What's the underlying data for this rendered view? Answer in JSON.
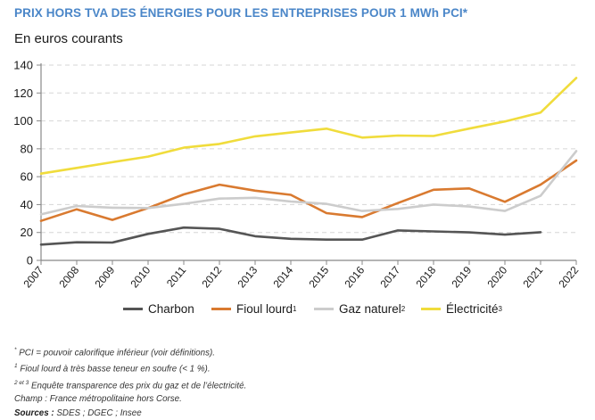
{
  "header": {
    "title": "PRIX HORS TVA DES ÉNERGIES POUR LES ENTREPRISES POUR 1 MWh PCI*",
    "subtitle": "En euros courants"
  },
  "chart_data": {
    "type": "line",
    "title": "PRIX HORS TVA DES ÉNERGIES POUR LES ENTREPRISES POUR 1 MWh PCI*",
    "subtitle": "En euros courants",
    "xlabel": "",
    "ylabel": "En euros courants",
    "x": [
      "2007",
      "2008",
      "2009",
      "2010",
      "2011",
      "2012",
      "2013",
      "2014",
      "2015",
      "2016",
      "2017",
      "2018",
      "2019",
      "2020",
      "2021",
      "2022"
    ],
    "ylim": [
      0,
      140
    ],
    "yticks": [
      0,
      20,
      40,
      60,
      80,
      100,
      120,
      140
    ],
    "grid": true,
    "legend_position": "bottom",
    "series": [
      {
        "name": "Charbon",
        "sup": "",
        "color": "#555555",
        "values": [
          11.3,
          13.0,
          12.8,
          19.0,
          23.5,
          22.6,
          17.3,
          15.5,
          14.9,
          14.9,
          21.5,
          20.8,
          20.1,
          18.5,
          20.2,
          null
        ]
      },
      {
        "name": "Fioul lourd",
        "sup": "1",
        "color": "#d97a30",
        "values": [
          28.3,
          36.6,
          29.0,
          37.5,
          47.3,
          54.3,
          50.0,
          47.0,
          33.9,
          31.1,
          41.1,
          50.6,
          51.6,
          42.0,
          54.3,
          71.6
        ]
      },
      {
        "name": "Gaz naturel",
        "sup": "2",
        "color": "#cccccc",
        "values": [
          33.0,
          39.0,
          37.8,
          37.5,
          40.5,
          44.3,
          44.9,
          42.2,
          40.5,
          35.4,
          36.9,
          40.0,
          38.6,
          35.4,
          46.3,
          78.4
        ]
      },
      {
        "name": "Électricité",
        "sup": "3",
        "color": "#f0dc3c",
        "values": [
          62.2,
          66.3,
          70.4,
          74.4,
          80.8,
          83.5,
          88.9,
          91.7,
          94.4,
          88.0,
          89.5,
          89.2,
          94.5,
          99.6,
          106.0,
          130.8
        ]
      }
    ]
  },
  "footnotes": {
    "n0_mark": "*",
    "n0_text": " PCI = pouvoir calorifique inférieur (voir définitions).",
    "n1_mark": "1",
    "n1_text": " Fioul lourd à très basse teneur en soufre (< 1 %).",
    "n2_mark": "2 et 3",
    "n2_text": " Enquête transparence des prix du gaz et de l’électricité.",
    "champ": "Champ : France métropolitaine hors Corse.",
    "sources_label": "Sources :",
    "sources_text": " SDES ; DGEC ; Insee"
  }
}
